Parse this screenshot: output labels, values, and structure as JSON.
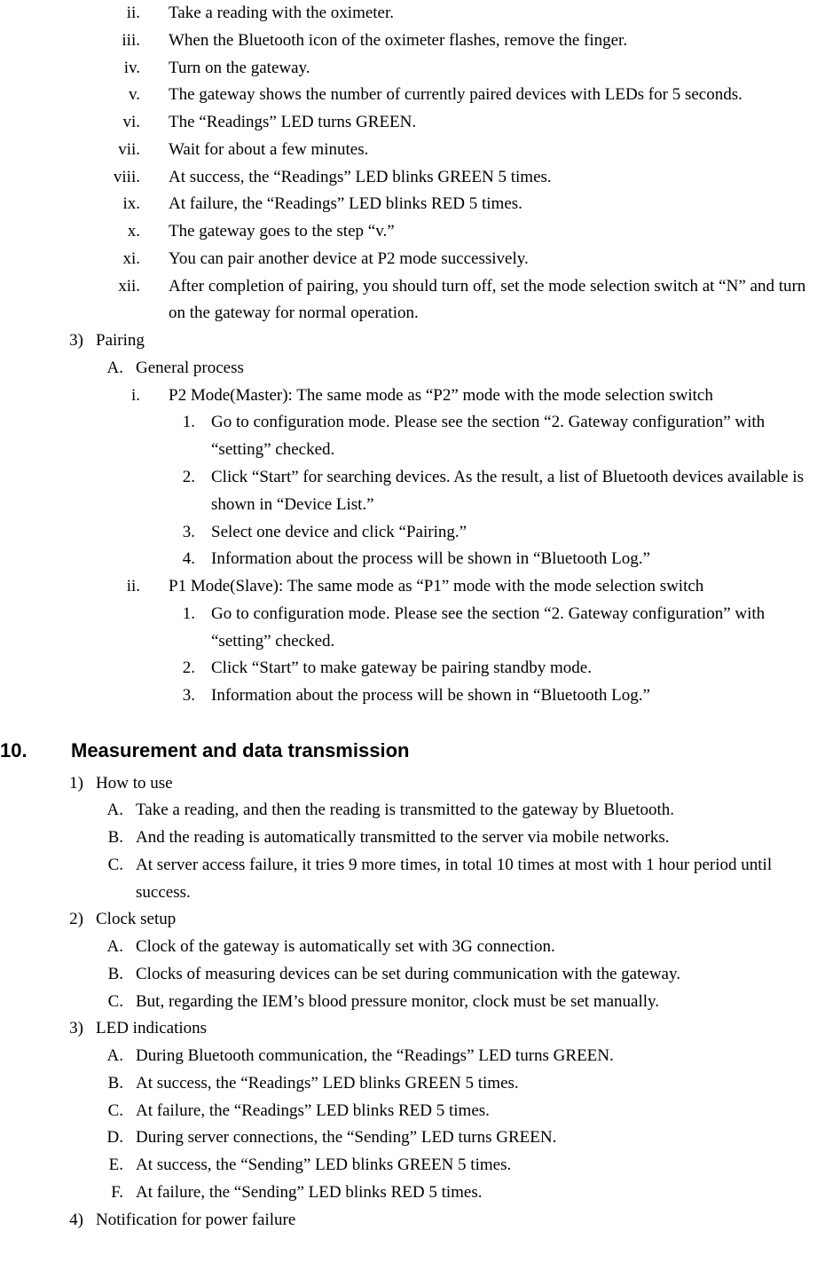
{
  "topRoman": [
    {
      "m": "ii.",
      "t": "Take a reading with the oximeter."
    },
    {
      "m": "iii.",
      "t": "When the Bluetooth icon of the oximeter flashes, remove the finger."
    },
    {
      "m": "iv.",
      "t": "Turn on the gateway."
    },
    {
      "m": "v.",
      "t": "The gateway shows the number of currently paired devices with LEDs for 5 seconds."
    },
    {
      "m": "vi.",
      "t": "The “Readings” LED turns GREEN."
    },
    {
      "m": "vii.",
      "t": "Wait for about a few minutes."
    },
    {
      "m": "viii.",
      "t": "At success, the “Readings” LED blinks GREEN 5 times."
    },
    {
      "m": "ix.",
      "t": "At failure, the “Readings” LED blinks RED 5 times."
    },
    {
      "m": "x.",
      "t": "The gateway goes to the step “v.”"
    },
    {
      "m": "xi.",
      "t": "You can pair another device at P2 mode successively."
    },
    {
      "m": "xii.",
      "t": "After completion of pairing, you should turn off, set the mode selection switch at “N” and turn on the gateway for normal operation."
    }
  ],
  "pairing": {
    "marker": "3)",
    "label": "Pairing",
    "A": {
      "marker": "A.",
      "label": "General process"
    },
    "i": {
      "marker": "i.",
      "label": "P2 Mode(Master): The same mode as “P2” mode with the mode selection switch",
      "steps": [
        {
          "m": "1.",
          "t": "Go to configuration mode. Please see the section “2. Gateway configuration” with “setting” checked."
        },
        {
          "m": "2.",
          "t": "Click “Start” for searching devices. As the result, a list of Bluetooth devices available is shown in “Device List.”"
        },
        {
          "m": "3.",
          "t": "Select one device and click “Pairing.”"
        },
        {
          "m": "4.",
          "t": "Information about the process will be shown in “Bluetooth Log.”"
        }
      ]
    },
    "ii": {
      "marker": "ii.",
      "label": "P1 Mode(Slave): The same mode as “P1” mode with the mode selection switch",
      "steps": [
        {
          "m": "1.",
          "t": "Go to configuration mode. Please see the section “2. Gateway configuration” with “setting” checked."
        },
        {
          "m": "2.",
          "t": "Click “Start” to make gateway be pairing standby mode."
        },
        {
          "m": "3.",
          "t": "Information about the process will be shown in “Bluetooth Log.”"
        }
      ]
    }
  },
  "section10": {
    "num": "10.",
    "title": "Measurement and data transmission"
  },
  "s10_items": [
    {
      "m": "1)",
      "t": "How to use",
      "sub": [
        {
          "m": "A.",
          "t": "Take a reading, and then the reading is transmitted to the gateway by Bluetooth."
        },
        {
          "m": "B.",
          "t": "And the reading is automatically transmitted to the server via mobile networks."
        },
        {
          "m": "C.",
          "t": "At server access failure, it tries 9 more times, in total 10 times at most with 1 hour period until success."
        }
      ]
    },
    {
      "m": "2)",
      "t": "Clock setup",
      "sub": [
        {
          "m": "A.",
          "t": "Clock of the gateway is automatically set with 3G connection."
        },
        {
          "m": "B.",
          "t": "Clocks of measuring devices can be set during communication with the gateway."
        },
        {
          "m": "C.",
          "t": "But, regarding the IEM’s blood pressure monitor, clock must be set manually."
        }
      ]
    },
    {
      "m": "3)",
      "t": "LED indications",
      "sub": [
        {
          "m": "A.",
          "t": "During Bluetooth communication, the “Readings” LED turns GREEN."
        },
        {
          "m": "B.",
          "t": "At success, the “Readings” LED blinks GREEN 5 times."
        },
        {
          "m": "C.",
          "t": "At failure, the “Readings” LED blinks RED 5 times."
        },
        {
          "m": "D.",
          "t": "During server connections, the “Sending” LED turns GREEN."
        },
        {
          "m": "E.",
          "t": "At success, the “Sending” LED blinks GREEN 5 times."
        },
        {
          "m": "F.",
          "t": "At failure, the “Sending” LED blinks RED 5 times."
        }
      ]
    },
    {
      "m": "4)",
      "t": "Notification for power failure",
      "sub": []
    }
  ]
}
